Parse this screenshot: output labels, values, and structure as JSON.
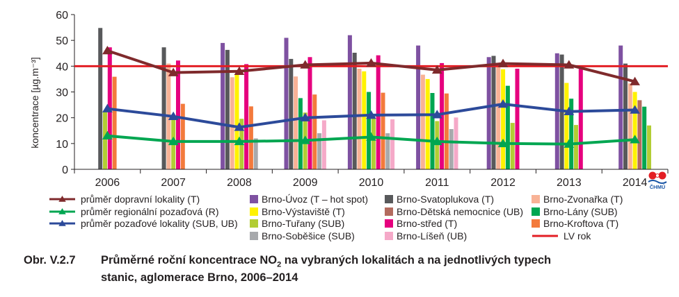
{
  "chart_data": {
    "type": "bar",
    "categories": [
      "2006",
      "2007",
      "2008",
      "2009",
      "2010",
      "2011",
      "2012",
      "2013",
      "2014"
    ],
    "ylabel": "koncentrace [µg.m⁻³]",
    "ylim": [
      0,
      60
    ],
    "yticks": [
      0,
      10,
      20,
      30,
      40,
      50,
      60
    ],
    "grid": false,
    "legend_placement": "bottom",
    "bar_series": [
      {
        "name": "Brno-Úvoz (T – hot spot)",
        "color": "#7e51a1",
        "values": [
          null,
          null,
          49,
          51,
          52,
          48,
          43.5,
          45,
          48
        ]
      },
      {
        "name": "Brno-Svatoplukova (T)",
        "color": "#58595b",
        "values": [
          54.8,
          47.3,
          46.3,
          42.8,
          45.2,
          null,
          44,
          44.5,
          41
        ]
      },
      {
        "name": "Brno-Zvonařka (T)",
        "color": "#f8b296",
        "values": [
          null,
          41,
          35.7,
          36,
          39,
          36.7,
          40,
          null,
          33.3
        ]
      },
      {
        "name": "Brno-Výstaviště (T)",
        "color": "#fff200",
        "values": [
          null,
          null,
          37,
          null,
          38,
          35,
          38.8,
          33.5,
          30
        ]
      },
      {
        "name": "Brno-Dětská nemocnice (UB)",
        "color": "#b36b5e",
        "values": [
          null,
          null,
          null,
          null,
          null,
          null,
          null,
          null,
          26.8
        ]
      },
      {
        "name": "Brno-Lány (SUB)",
        "color": "#00a651",
        "values": [
          null,
          null,
          null,
          27.6,
          30,
          29.6,
          32.4,
          27.4,
          24.3
        ]
      },
      {
        "name": "Brno-Tuřany (SUB)",
        "color": "#b2cd34",
        "values": [
          22.7,
          19.8,
          19.6,
          22,
          19.7,
          18.7,
          18,
          17.2,
          17
        ]
      },
      {
        "name": "Brno-střed (T)",
        "color": "#e6007e",
        "values": [
          47.3,
          42.2,
          40.8,
          43.5,
          44.2,
          41.2,
          39,
          38.9,
          null
        ]
      },
      {
        "name": "Brno-Kroftova (T)",
        "color": "#f37a3c",
        "values": [
          35.9,
          25.4,
          24.4,
          29,
          29.7,
          29.4,
          null,
          null,
          null
        ]
      },
      {
        "name": "Brno-Soběšice (SUB)",
        "color": "#a7a9ac",
        "values": [
          null,
          null,
          12,
          14,
          14,
          15.6,
          null,
          null,
          null
        ]
      },
      {
        "name": "Brno-Líšeň (UB)",
        "color": "#f5a9c8",
        "values": [
          null,
          null,
          null,
          19,
          19.4,
          20.1,
          null,
          null,
          null
        ]
      }
    ],
    "line_series": [
      {
        "name": "průměr dopravní lokality (T)",
        "color": "#7f2a2c",
        "values": [
          46,
          37.5,
          38,
          40.5,
          41.2,
          38.5,
          41,
          40.5,
          34
        ]
      },
      {
        "name": "průměr regionální pozaďová (R)",
        "color": "#00a651",
        "values": [
          13,
          10.8,
          10.8,
          11.2,
          12.5,
          10.8,
          10,
          9.8,
          11.5
        ]
      },
      {
        "name": "průměr pozaďové lokality (SUB, UB)",
        "color": "#2c4a9a",
        "values": [
          23.5,
          20.5,
          16.3,
          20,
          21,
          21.2,
          25.3,
          22.4,
          23
        ]
      }
    ],
    "limit_line": {
      "name": "LV rok",
      "color": "#e31e24",
      "value": 40
    }
  },
  "legend_columns": [
    [
      "průměr dopravní lokality (T)",
      "průměr regionální pozaďová (R)",
      "průměr pozaďové lokality (SUB, UB)"
    ],
    [
      "Brno-Úvoz (T – hot spot)",
      "Brno-Výstaviště (T)",
      "Brno-Tuřany (SUB)",
      "Brno-Soběšice (SUB)"
    ],
    [
      "Brno-Svatoplukova (T)",
      "Brno-Dětská nemocnice (UB)",
      "Brno-střed (T)",
      "Brno-Líšeň (UB)"
    ],
    [
      "Brno-Zvonařka (T)",
      "Brno-Lány (SUB)",
      "Brno-Kroftova (T)",
      "LV rok"
    ]
  ],
  "caption": {
    "prefix": "Obr. V.2.7",
    "line1_before": "Průměrné roční koncentrace NO",
    "line1_sub": "2",
    "line1_after": " na vybraných lokalitách a na jednotlivých typech",
    "line2": "stanic, aglomerace Brno, 2006–2014"
  },
  "logo": {
    "text": "ČHMÚ"
  }
}
